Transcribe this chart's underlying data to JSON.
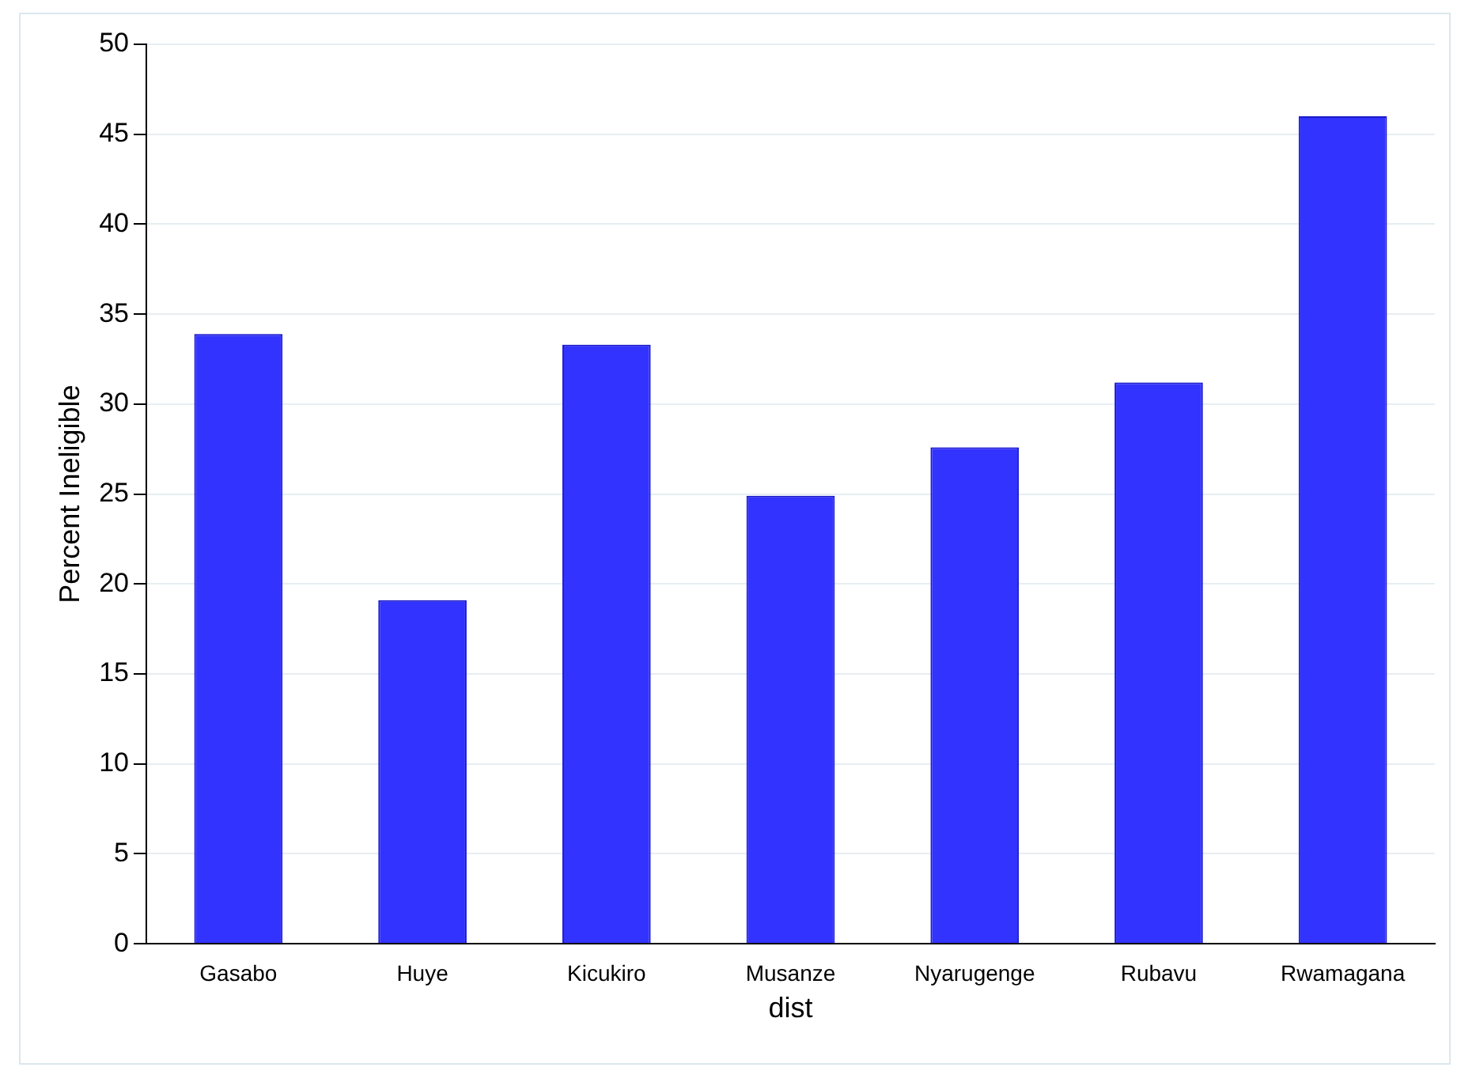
{
  "chart_data": {
    "type": "bar",
    "xlabel": "dist",
    "ylabel": "Percent Ineligible",
    "categories": [
      "Gasabo",
      "Huye",
      "Kicukiro",
      "Musanze",
      "Nyarugenge",
      "Rubavu",
      "Rwamagana"
    ],
    "values": [
      33.9,
      19.1,
      33.3,
      24.9,
      27.6,
      31.2,
      46.0
    ],
    "color": "#3333ff",
    "ylim": [
      0,
      50
    ],
    "yticks": [
      0,
      5,
      10,
      15,
      20,
      25,
      30,
      35,
      40,
      45,
      50
    ],
    "grid": "y"
  }
}
